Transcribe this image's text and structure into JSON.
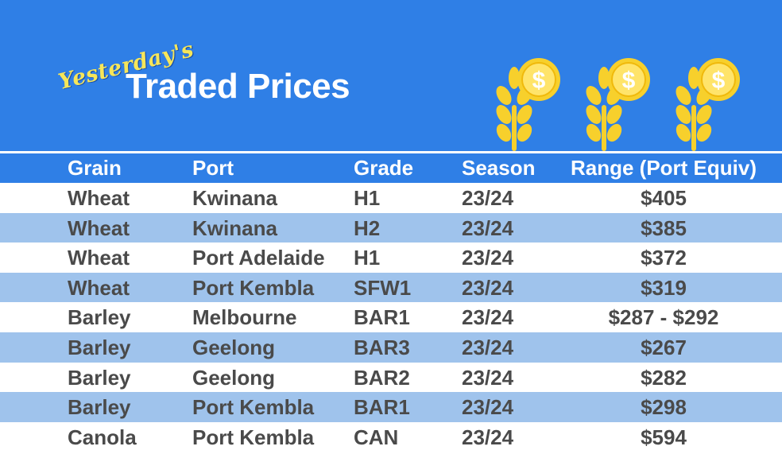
{
  "header": {
    "script_text": "Yesterday's",
    "title": "Traded Prices",
    "icons": [
      "wheat-coin-icon",
      "wheat-coin-icon",
      "wheat-coin-icon"
    ],
    "colors": {
      "banner": "#2f7fe6",
      "script": "#f6e65a",
      "icon_gold": "#f7d02c"
    }
  },
  "table": {
    "columns": [
      "Grain",
      "Port",
      "Grade",
      "Season",
      "Range (Port Equiv)"
    ],
    "rows": [
      {
        "grain": "Wheat",
        "port": "Kwinana",
        "grade": "H1",
        "season": "23/24",
        "range": "$405"
      },
      {
        "grain": "Wheat",
        "port": "Kwinana",
        "grade": "H2",
        "season": "23/24",
        "range": "$385"
      },
      {
        "grain": "Wheat",
        "port": "Port Adelaide",
        "grade": "H1",
        "season": "23/24",
        "range": "$372"
      },
      {
        "grain": "Wheat",
        "port": "Port Kembla",
        "grade": "SFW1",
        "season": "23/24",
        "range": "$319"
      },
      {
        "grain": "Barley",
        "port": "Melbourne",
        "grade": "BAR1",
        "season": "23/24",
        "range": "$287 - $292"
      },
      {
        "grain": "Barley",
        "port": "Geelong",
        "grade": "BAR3",
        "season": "23/24",
        "range": "$267"
      },
      {
        "grain": "Barley",
        "port": "Geelong",
        "grade": "BAR2",
        "season": "23/24",
        "range": "$282"
      },
      {
        "grain": "Barley",
        "port": "Port Kembla",
        "grade": "BAR1",
        "season": "23/24",
        "range": "$298"
      },
      {
        "grain": "Canola",
        "port": "Port Kembla",
        "grade": "CAN",
        "season": "23/24",
        "range": "$594"
      }
    ],
    "colors": {
      "header_bg": "#2f7fe6",
      "stripe_bg": "#9fc3ec",
      "text": "#4a4a4a"
    }
  }
}
